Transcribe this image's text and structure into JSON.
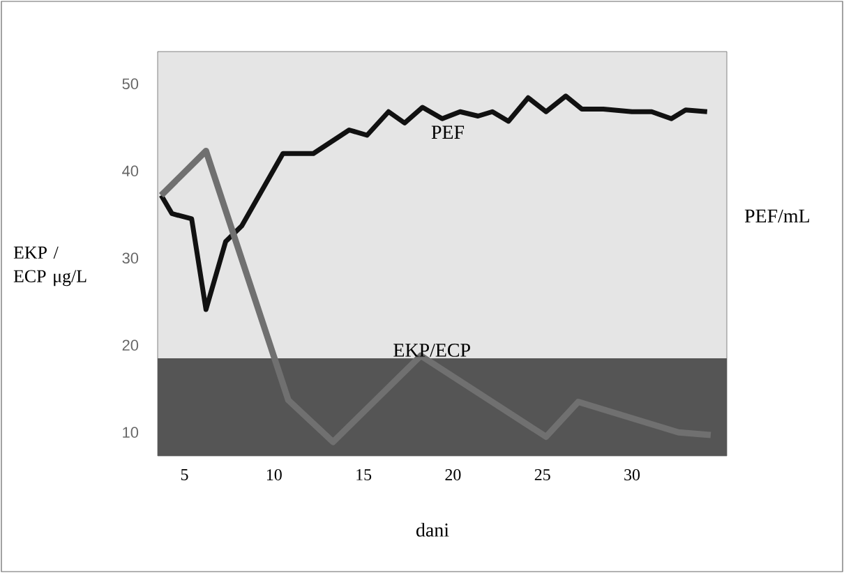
{
  "chart_data": {
    "type": "line",
    "xlabel": "dani",
    "ylabel": "EKP / ECP μg/L",
    "y2label": "PEF/mL",
    "xlim": [
      3.5,
      35.3
    ],
    "ylim": [
      7.3,
      53.7
    ],
    "xticks": [
      5,
      10,
      15,
      20,
      25,
      30
    ],
    "yticks": [
      10,
      20,
      30,
      40,
      50
    ],
    "grid": false,
    "marker": "none",
    "line_style": "solid",
    "bands": [
      {
        "axis": "y",
        "from": 7.3,
        "to": 18.5,
        "color": "#555555"
      }
    ],
    "series": [
      {
        "name": "PEF",
        "color": "#111111",
        "x": [
          3.7,
          4.3,
          5.4,
          6.2,
          7.3,
          8.2,
          10.5,
          12.2,
          14.2,
          15.2,
          16.4,
          17.3,
          18.3,
          19.4,
          20.4,
          21.4,
          22.2,
          23.1,
          24.2,
          25.2,
          26.3,
          27.2,
          28.4,
          30.0,
          31.1,
          32.2,
          33.0,
          34.2
        ],
        "values": [
          37.2,
          35.1,
          34.5,
          24.1,
          31.9,
          33.7,
          42.0,
          42.0,
          44.7,
          44.1,
          46.8,
          45.5,
          47.3,
          46.0,
          46.8,
          46.3,
          46.8,
          45.7,
          48.4,
          46.8,
          48.6,
          47.1,
          47.1,
          46.8,
          46.8,
          46.0,
          47.0,
          46.8
        ]
      },
      {
        "name": "EKP/ECP",
        "color": "#707070",
        "x": [
          3.7,
          6.2,
          10.8,
          13.3,
          18.2,
          25.2,
          27.0,
          32.6,
          34.4
        ],
        "values": [
          37.2,
          42.3,
          13.7,
          8.9,
          18.8,
          9.5,
          13.5,
          10.0,
          9.7
        ]
      }
    ]
  }
}
